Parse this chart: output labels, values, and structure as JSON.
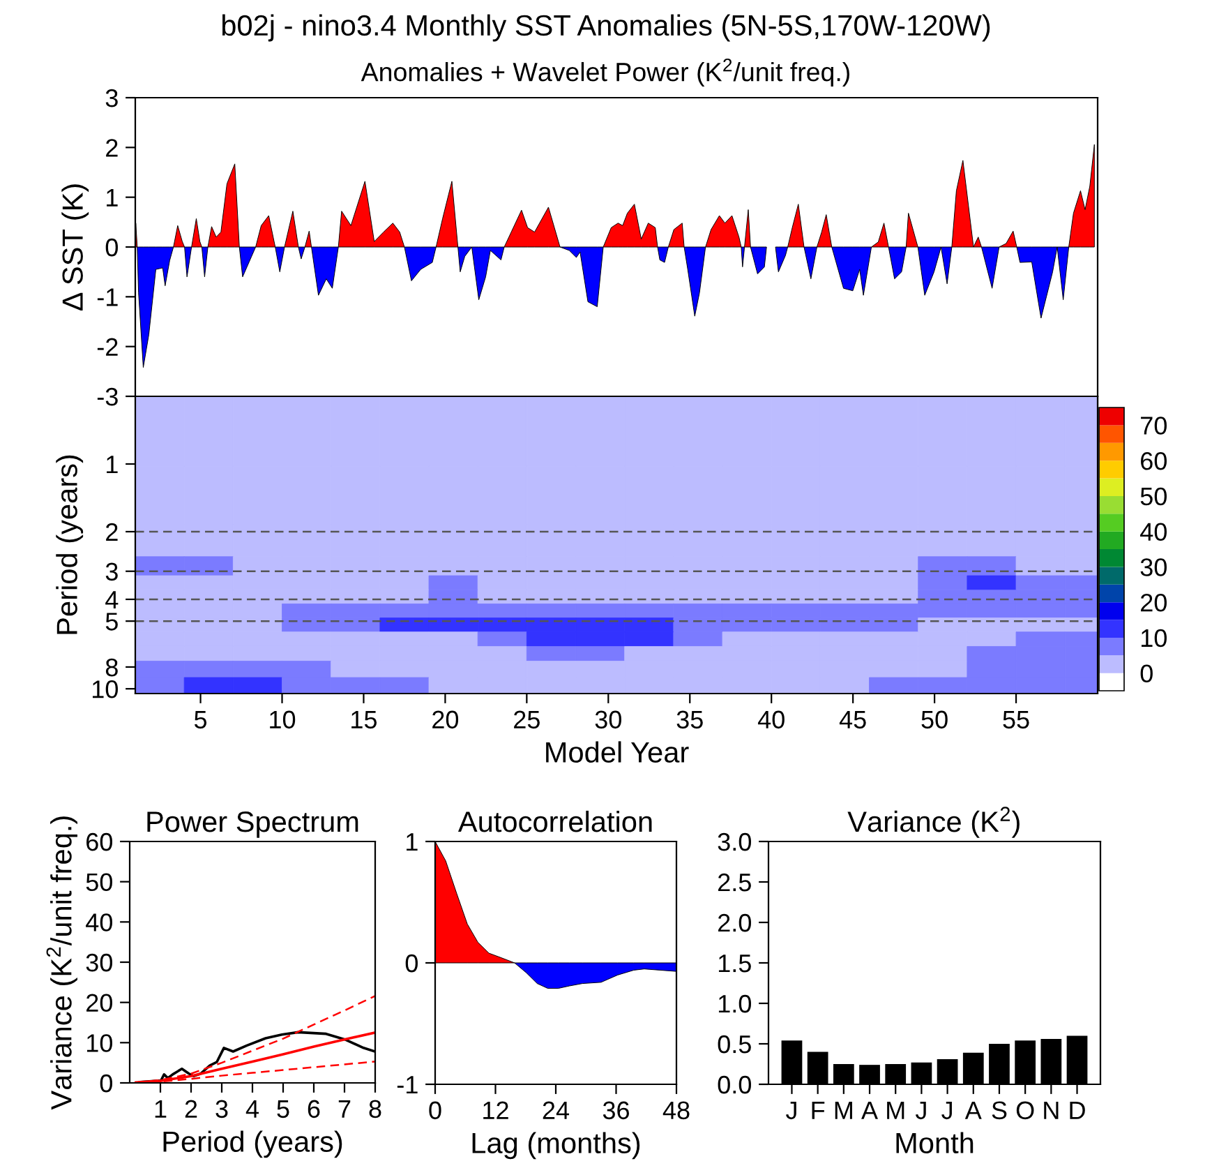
{
  "chart_data": [
    {
      "type": "area",
      "title": "b02j - nino3.4 Monthly SST Anomalies (5N-5S,170W-120W)",
      "subtitle": "Anomalies + Wavelet Power (K$^{2}$/unit freq.)",
      "ylabel": "Δ SST (K)",
      "xlim": [
        1,
        60
      ],
      "ylim": [
        -3,
        3
      ],
      "yticks": [
        -3,
        -2,
        -1,
        0,
        1,
        2,
        3
      ],
      "tick_labels": "y",
      "x": [
        1.03,
        1.12,
        1.2,
        1.49,
        1.83,
        2.26,
        2.68,
        2.83,
        3.11,
        3.34,
        3.6,
        3.88,
        4.02,
        4.17,
        4.45,
        4.74,
        4.96,
        5.08,
        5.25,
        5.45,
        5.68,
        5.96,
        6.25,
        6.62,
        7.1,
        7.38,
        7.58,
        8.1,
        8.38,
        8.72,
        9.18,
        9.58,
        9.86,
        10.15,
        10.66,
        11.0,
        11.17,
        11.4,
        11.66,
        11.8,
        12.23,
        12.71,
        13.08,
        13.45,
        13.65,
        14.22,
        15.08,
        15.65,
        16.22,
        16.79,
        17.21,
        17.5,
        17.93,
        18.5,
        19.21,
        19.44,
        19.84,
        20.41,
        20.78,
        20.92,
        21.2,
        21.63,
        22.06,
        22.48,
        22.77,
        23.42,
        23.62,
        24.05,
        24.68,
        25.05,
        25.48,
        26.33,
        27.04,
        27.61,
        28.04,
        28.27,
        28.75,
        29.32,
        29.69,
        30.18,
        30.6,
        30.88,
        31.17,
        31.6,
        32.02,
        32.45,
        32.88,
        33.02,
        33.16,
        33.45,
        33.68,
        34.02,
        34.53,
        34.65,
        34.87,
        35.3,
        35.59,
        35.96,
        36.3,
        36.81,
        37.15,
        37.58,
        38.01,
        38.15,
        38.23,
        38.35,
        38.58,
        38.72,
        39.15,
        39.57,
        39.7,
        40.0,
        40.25,
        40.43,
        40.86,
        41.0,
        41.28,
        41.65,
        42.0,
        42.42,
        42.79,
        43.08,
        43.36,
        43.7,
        44.42,
        44.99,
        45.41,
        45.64,
        46.13,
        46.55,
        46.9,
        47.18,
        47.55,
        47.98,
        48.26,
        48.4,
        48.98,
        49.4,
        49.97,
        50.4,
        50.77,
        51.06,
        51.34,
        51.74,
        52.39,
        52.68,
        52.88,
        53.53,
        53.96,
        54.39,
        54.82,
        55.04,
        55.24,
        55.96,
        56.53,
        57.24,
        57.52,
        57.89,
        58.23,
        58.52,
        58.95,
        59.23,
        59.52,
        59.8
      ],
      "series": [
        {
          "color": "#ff0000",
          "values": [
            0.48,
            0,
            null,
            null,
            null,
            null,
            null,
            null,
            null,
            0,
            0.43,
            0.11,
            0,
            null,
            0,
            0.57,
            0.11,
            0,
            null,
            0,
            0.41,
            0.2,
            0.3,
            1.27,
            1.67,
            0,
            null,
            null,
            0,
            0.43,
            0.63,
            0,
            null,
            0,
            0.72,
            0,
            null,
            0,
            0.32,
            0,
            null,
            null,
            null,
            0,
            0.72,
            0.43,
            1.32,
            0.11,
            0.3,
            0.48,
            0.3,
            0,
            null,
            null,
            null,
            0,
            0.57,
            1.32,
            0,
            null,
            null,
            null,
            null,
            null,
            null,
            null,
            0,
            0.3,
            0.74,
            0.39,
            0.3,
            0.8,
            0,
            null,
            null,
            null,
            null,
            null,
            0,
            0.39,
            0.48,
            0.43,
            0.68,
            0.86,
            0.16,
            0.48,
            0.39,
            0,
            null,
            null,
            0,
            0.35,
            0.48,
            0,
            null,
            null,
            null,
            0,
            0.35,
            0.63,
            0.48,
            0.63,
            0.2,
            0,
            null,
            0,
            0.75,
            0,
            null,
            null,
            null,
            null,
            null,
            null,
            null,
            0,
            0.39,
            0.86,
            0,
            null,
            0,
            0.3,
            0.65,
            0,
            null,
            null,
            null,
            null,
            0,
            0.1,
            0.48,
            0,
            null,
            null,
            0,
            0.68,
            0,
            null,
            null,
            null,
            null,
            0,
            1.13,
            1.74,
            0,
            0.2,
            0,
            null,
            0,
            0.07,
            0.32,
            0,
            null,
            null,
            null,
            null,
            null,
            null,
            0,
            0.68,
            1.13,
            0.75,
            1.22,
            2.06
          ]
        },
        {
          "color": "#0000ff",
          "values": [
            null,
            0,
            -0.92,
            -2.42,
            -1.76,
            -0.45,
            -0.42,
            -0.78,
            -0.27,
            0,
            null,
            null,
            0,
            -0.6,
            0,
            null,
            null,
            0,
            -0.6,
            0,
            null,
            null,
            null,
            null,
            null,
            0,
            -0.6,
            -0.21,
            0,
            null,
            null,
            0,
            -0.5,
            0,
            null,
            0,
            -0.24,
            0,
            null,
            0,
            -0.97,
            -0.64,
            -0.83,
            0,
            null,
            null,
            null,
            null,
            null,
            null,
            null,
            0,
            -0.68,
            -0.45,
            -0.31,
            0,
            null,
            null,
            0,
            -0.5,
            -0.19,
            0,
            -1.06,
            -0.6,
            -0.07,
            -0.26,
            0,
            null,
            null,
            null,
            null,
            null,
            0,
            -0.07,
            -0.21,
            -0.1,
            -1.1,
            -1.2,
            0,
            null,
            null,
            null,
            null,
            null,
            null,
            null,
            null,
            0,
            -0.26,
            -0.31,
            0,
            null,
            null,
            0,
            -0.45,
            -1.39,
            -0.92,
            0,
            null,
            null,
            null,
            null,
            null,
            0,
            -0.4,
            0,
            null,
            0,
            -0.54,
            -0.4,
            0,
            null,
            0,
            -0.5,
            -0.17,
            0,
            null,
            null,
            0,
            -0.64,
            0,
            null,
            null,
            0,
            -0.83,
            -0.88,
            -0.45,
            -0.97,
            0,
            null,
            null,
            0,
            -0.64,
            -0.5,
            0,
            null,
            0,
            -0.97,
            -0.5,
            0,
            -0.74,
            0,
            null,
            null,
            null,
            null,
            0,
            -0.83,
            0,
            null,
            null,
            0,
            -0.31,
            -0.3,
            -1.43,
            -0.5,
            0,
            -1.06,
            0,
            null,
            null,
            null,
            null,
            null
          ]
        }
      ]
    },
    {
      "type": "heatmap",
      "xlabel": "Model Year",
      "ylabel": "Period (years)",
      "log": "y",
      "xlim": [
        1,
        60
      ],
      "xticks": [
        5,
        10,
        15,
        20,
        25,
        30,
        35,
        40,
        45,
        50,
        55
      ],
      "ylim": [
        10.5,
        0.5
      ],
      "yticks": [
        1,
        2,
        3,
        4,
        5,
        8,
        10
      ],
      "clim": [
        -5,
        75
      ],
      "cticks": [
        0,
        10,
        20,
        30,
        40,
        50,
        60,
        70
      ],
      "colors": [
        "#ffffff",
        "#bcbcff",
        "#7b7bff",
        "#3333ff",
        "#0000ee",
        "#0044aa",
        "#006a6a",
        "#008833",
        "#22aa22",
        "#55cc22",
        "#99dd33",
        "#ddee22",
        "#ffcc00",
        "#ff9900",
        "#ff5500",
        "#ee0000"
      ],
      "x": [
        2.5,
        5.5,
        8.5,
        11.5,
        14.5,
        17.5,
        20.5,
        23.5,
        26.5,
        29.5,
        32.5,
        35.5,
        38.5,
        41.5,
        44.5,
        47.5,
        50.5,
        53.5,
        56.5,
        59.5
      ],
      "y": [
        0.7,
        1.5,
        2.3,
        2.9,
        3.4,
        3.9,
        4.5,
        5.2,
        6.0,
        7.0,
        8.1,
        9.8
      ],
      "cells": [
        [
          2.5,
          2.5,
          2.5,
          2.5,
          2.5,
          2.5,
          2.5,
          2.5,
          2.5,
          2.5,
          2.5,
          2.5,
          2.5,
          2.5,
          2.5,
          2.5,
          2.5,
          2.5,
          2.5,
          2.5
        ],
        [
          2.5,
          2.5,
          2.5,
          2.5,
          2.5,
          2.5,
          2.5,
          2.5,
          2.5,
          2.5,
          2.5,
          2.5,
          2.5,
          2.5,
          2.5,
          2.5,
          2.5,
          2.5,
          2.5,
          2.5
        ],
        [
          2.5,
          2.5,
          2.5,
          2.5,
          2.5,
          2.5,
          2.5,
          2.5,
          2.5,
          2.5,
          2.5,
          2.5,
          2.5,
          2.5,
          2.5,
          2.5,
          2.5,
          2.5,
          2.5,
          2.5
        ],
        [
          7.5,
          7.5,
          2.5,
          2.5,
          2.5,
          2.5,
          2.5,
          2.5,
          2.5,
          2.5,
          2.5,
          2.5,
          2.5,
          2.5,
          2.5,
          2.5,
          7.5,
          7.5,
          2.5,
          2.5
        ],
        [
          2.5,
          2.5,
          2.5,
          2.5,
          2.5,
          2.5,
          7.5,
          2.5,
          2.5,
          2.5,
          2.5,
          2.5,
          2.5,
          2.5,
          2.5,
          2.5,
          7.5,
          12.5,
          7.5,
          7.5
        ],
        [
          2.5,
          2.5,
          2.5,
          2.5,
          2.5,
          2.5,
          7.5,
          2.5,
          2.5,
          2.5,
          2.5,
          2.5,
          2.5,
          2.5,
          2.5,
          2.5,
          7.5,
          7.5,
          7.5,
          7.5
        ],
        [
          2.5,
          2.5,
          2.5,
          7.5,
          7.5,
          7.5,
          7.5,
          7.5,
          7.5,
          7.5,
          7.5,
          7.5,
          7.5,
          7.5,
          7.5,
          7.5,
          7.5,
          7.5,
          7.5,
          7.5
        ],
        [
          2.5,
          2.5,
          2.5,
          7.5,
          7.5,
          12.5,
          12.5,
          12.5,
          12.5,
          12.5,
          12.5,
          7.5,
          7.5,
          7.5,
          7.5,
          7.5,
          2.5,
          2.5,
          2.5,
          2.5
        ],
        [
          2.5,
          2.5,
          2.5,
          2.5,
          2.5,
          2.5,
          2.5,
          7.5,
          12.5,
          12.5,
          12.5,
          7.5,
          2.5,
          2.5,
          2.5,
          2.5,
          2.5,
          2.5,
          7.5,
          7.5
        ],
        [
          2.5,
          2.5,
          2.5,
          2.5,
          2.5,
          2.5,
          2.5,
          2.5,
          7.5,
          7.5,
          2.5,
          2.5,
          2.5,
          2.5,
          2.5,
          2.5,
          2.5,
          7.5,
          7.5,
          7.5
        ],
        [
          7.5,
          7.5,
          7.5,
          7.5,
          2.5,
          2.5,
          2.5,
          2.5,
          2.5,
          2.5,
          2.5,
          2.5,
          2.5,
          2.5,
          2.5,
          2.5,
          2.5,
          7.5,
          7.5,
          7.5
        ],
        [
          7.5,
          12.5,
          12.5,
          7.5,
          7.5,
          7.5,
          2.5,
          2.5,
          2.5,
          2.5,
          2.5,
          2.5,
          2.5,
          2.5,
          2.5,
          7.5,
          7.5,
          7.5,
          7.5,
          7.5
        ]
      ],
      "ref_lines": [
        {
          "axis": "y",
          "value": 2,
          "line_style": "dashed",
          "color": "#555555"
        },
        {
          "axis": "y",
          "value": 3,
          "line_style": "dashed",
          "color": "#555555"
        },
        {
          "axis": "y",
          "value": 4,
          "line_style": "dashed",
          "color": "#555555"
        },
        {
          "axis": "y",
          "value": 5,
          "line_style": "dashed",
          "color": "#555555"
        }
      ]
    },
    {
      "type": "line",
      "title": "Power Spectrum",
      "xlabel": "Period (years)",
      "ylabel": "Variance (K$^{2}$/unit freq.)",
      "xlim": [
        0,
        8
      ],
      "xticks": [
        1,
        2,
        3,
        4,
        5,
        6,
        7,
        8
      ],
      "ylim": [
        0,
        60
      ],
      "yticks": [
        0,
        10,
        20,
        30,
        40,
        50,
        60
      ],
      "series": [
        {
          "color": "#000000",
          "line_style": "solid",
          "x": [
            0.33,
            1.02,
            1.12,
            1.24,
            1.4,
            1.7,
            1.93,
            2.08,
            2.31,
            2.61,
            2.84,
            3.07,
            3.37,
            3.82,
            4.43,
            4.96,
            5.49,
            6.4,
            7.01,
            7.62,
            8
          ],
          "values": [
            0.2,
            0.6,
            2.1,
            1.2,
            2.1,
            3.5,
            2.3,
            1.7,
            2.3,
            4.3,
            5.2,
            8.7,
            7.8,
            9.3,
            11.1,
            12.0,
            12.6,
            12.2,
            10.8,
            8.7,
            7.8
          ]
        },
        {
          "color": "#ff0000",
          "line_style": "solid",
          "x": [
            0.2,
            1,
            2,
            3,
            4,
            5,
            6,
            7,
            8
          ],
          "values": [
            0.1,
            0.5,
            1.7,
            3.5,
            5.3,
            7.1,
            9,
            10.8,
            12.5
          ]
        },
        {
          "color": "#ff0000",
          "line_style": "dashed",
          "x": [
            0.2,
            1,
            2,
            3,
            4,
            5,
            6,
            7,
            8
          ],
          "values": [
            0.1,
            0.7,
            2.3,
            5,
            8,
            11,
            14.5,
            18,
            21.6
          ]
        },
        {
          "color": "#ff0000",
          "line_style": "dashed",
          "x": [
            0.2,
            1,
            2,
            3,
            4,
            5,
            6,
            7,
            8
          ],
          "values": [
            0.1,
            0.3,
            1,
            1.8,
            2.5,
            3.2,
            3.9,
            4.6,
            5.3
          ]
        }
      ]
    },
    {
      "type": "area",
      "title": "Autocorrelation",
      "xlabel": "Lag (months)",
      "xlim": [
        0,
        48
      ],
      "xticks": [
        0,
        12,
        24,
        36,
        48
      ],
      "ylim": [
        -1,
        1
      ],
      "yticks": [
        -1,
        0,
        1
      ],
      "series": [
        {
          "color": "#ff0000",
          "x": [
            0,
            2.1,
            4.3,
            6.4,
            8.5,
            10.7,
            13.3,
            15.8
          ],
          "values": [
            1,
            0.84,
            0.57,
            0.32,
            0.17,
            0.08,
            0.04,
            0
          ]
        },
        {
          "color": "#0000ff",
          "x": [
            15.8,
            18.1,
            20.3,
            22.4,
            24.5,
            26.7,
            29.3,
            33,
            36.3,
            39.5,
            41.6,
            44.8,
            48
          ],
          "values": [
            0,
            -0.08,
            -0.17,
            -0.21,
            -0.21,
            -0.19,
            -0.17,
            -0.16,
            -0.1,
            -0.06,
            -0.05,
            -0.06,
            -0.07
          ]
        }
      ]
    },
    {
      "type": "bar",
      "title": "Variance (K$^{2}$)",
      "xlabel": "Month",
      "categories": [
        "J",
        "F",
        "M",
        "A",
        "M",
        "J",
        "J",
        "A",
        "S",
        "O",
        "N",
        "D"
      ],
      "values": [
        0.54,
        0.4,
        0.25,
        0.24,
        0.25,
        0.27,
        0.31,
        0.39,
        0.5,
        0.54,
        0.56,
        0.6
      ],
      "color": "#000000",
      "ylim": [
        0,
        3
      ],
      "yticks": [
        {
          "value": 0,
          "label": "0.0"
        },
        {
          "value": 0.5,
          "label": "0.5"
        },
        {
          "value": 1,
          "label": "1.0"
        },
        {
          "value": 1.5,
          "label": "1.5"
        },
        {
          "value": 2,
          "label": "2.0"
        },
        {
          "value": 2.5,
          "label": "2.5"
        },
        {
          "value": 3,
          "label": "3.0"
        }
      ]
    }
  ]
}
